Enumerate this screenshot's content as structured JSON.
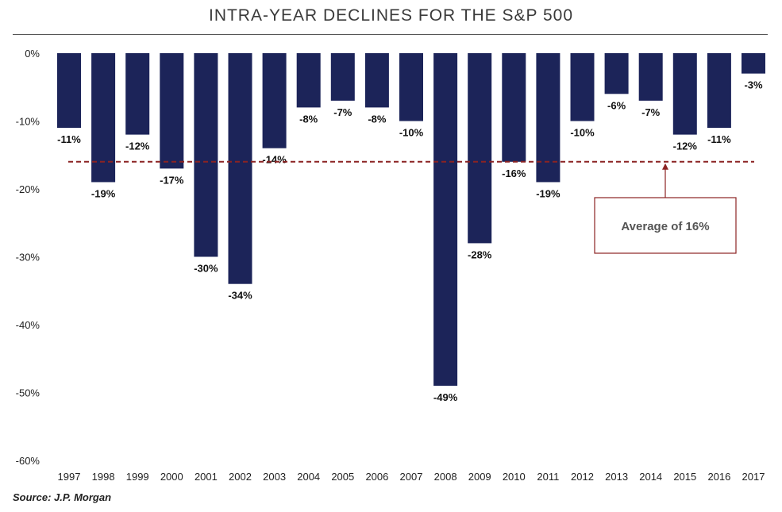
{
  "header": {
    "title": "INTRA-YEAR DECLINES FOR THE S&P 500"
  },
  "footer": {
    "source": "Source: J.P. Morgan"
  },
  "chart_data": {
    "type": "bar",
    "title": "INTRA-YEAR DECLINES FOR THE S&P 500",
    "xlabel": "",
    "ylabel": "",
    "categories": [
      "1997",
      "1998",
      "1999",
      "2000",
      "2001",
      "2002",
      "2003",
      "2004",
      "2005",
      "2006",
      "2007",
      "2008",
      "2009",
      "2010",
      "2011",
      "2012",
      "2013",
      "2014",
      "2015",
      "2016",
      "2017"
    ],
    "values": [
      -11,
      -19,
      -12,
      -17,
      -30,
      -34,
      -14,
      -8,
      -7,
      -8,
      -10,
      -49,
      -28,
      -16,
      -19,
      -10,
      -6,
      -7,
      -12,
      -11,
      -3
    ],
    "data_labels": [
      "-11%",
      "-19%",
      "-12%",
      "-17%",
      "-30%",
      "-34%",
      "-14%",
      "-8%",
      "-7%",
      "-8%",
      "-10%",
      "-49%",
      "-28%",
      "-16%",
      "-19%",
      "-10%",
      "-6%",
      "-7%",
      "-12%",
      "-11%",
      "-3%"
    ],
    "yticks": [
      0,
      -10,
      -20,
      -30,
      -40,
      -50,
      -60
    ],
    "ytick_labels": [
      "0%",
      "-10%",
      "-20%",
      "-30%",
      "-40%",
      "-50%",
      "-60%"
    ],
    "ylim": [
      -60,
      0
    ],
    "grid": false,
    "legend": "none",
    "reference_line": {
      "value": -16,
      "style": "dashed"
    },
    "annotation": {
      "text": "Average of 16%"
    },
    "colors": {
      "bar": "#1c2459",
      "reference": "#8b2323",
      "annotation_border": "#8b2323"
    }
  }
}
